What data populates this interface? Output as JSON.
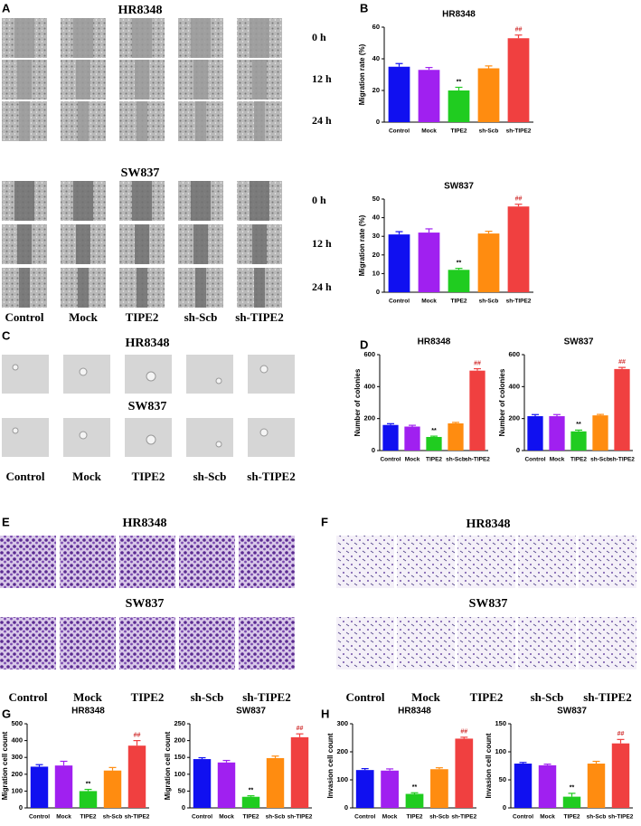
{
  "panel_letters": [
    "A",
    "B",
    "C",
    "D",
    "E",
    "F",
    "G",
    "H"
  ],
  "panels": {
    "A": {
      "groups": [
        {
          "title": "HR8348",
          "rows": [
            "0 h",
            "12 h",
            "24 h"
          ]
        },
        {
          "title": "SW837",
          "rows": [
            "0 h",
            "12 h",
            "24 h"
          ]
        }
      ],
      "columns": [
        "Control",
        "Mock",
        "TIPE2",
        "sh-Scb",
        "sh-TIPE2"
      ]
    },
    "C": {
      "groups": [
        {
          "title": "HR8348"
        },
        {
          "title": "SW837"
        }
      ],
      "columns": [
        "Control",
        "Mock",
        "TIPE2",
        "sh-Scb",
        "sh-TIPE2"
      ]
    },
    "E": {
      "groups": [
        {
          "title": "HR8348"
        },
        {
          "title": "SW837"
        }
      ],
      "columns": [
        "Control",
        "Mock",
        "TIPE2",
        "sh-Scb",
        "sh-TIPE2"
      ]
    },
    "F": {
      "groups": [
        {
          "title": "HR8348"
        },
        {
          "title": "SW837"
        }
      ],
      "columns": [
        "Control",
        "Mock",
        "TIPE2",
        "sh-Scb",
        "sh-TIPE2"
      ]
    }
  },
  "chart_data": [
    {
      "type": "bar",
      "title": "HR8348",
      "y_label": "Migration rate (%)",
      "categories": [
        "Control",
        "Mock",
        "TIPE2",
        "sh-Scb",
        "sh-TIPE2"
      ],
      "values": [
        35,
        33,
        20,
        34,
        53
      ],
      "errors": [
        2,
        1.5,
        2,
        1.5,
        2
      ],
      "annotations": [
        null,
        null,
        "**",
        null,
        "##"
      ],
      "colors": [
        "#1010f0",
        "#a020f0",
        "#20cc20",
        "#ff8c10",
        "#f04040"
      ],
      "ylim": [
        0,
        60
      ],
      "yticks": [
        0,
        20,
        40,
        60
      ]
    },
    {
      "type": "bar",
      "title": "SW837",
      "y_label": "Migration rate (%)",
      "categories": [
        "Control",
        "Mock",
        "TIPE2",
        "sh-Scb",
        "sh-TIPE2"
      ],
      "values": [
        31,
        32,
        12,
        31.5,
        46
      ],
      "errors": [
        1.5,
        2,
        0.8,
        1.2,
        1.2
      ],
      "annotations": [
        null,
        null,
        "**",
        null,
        "##"
      ],
      "colors": [
        "#1010f0",
        "#a020f0",
        "#20cc20",
        "#ff8c10",
        "#f04040"
      ],
      "ylim": [
        0,
        50
      ],
      "yticks": [
        0,
        10,
        20,
        30,
        40,
        50
      ]
    },
    {
      "type": "bar",
      "title": "HR8348",
      "y_label": "Number of colonies",
      "categories": [
        "Control",
        "Mock",
        "TIPE2",
        "sh-Scb",
        "sh-TIPE2"
      ],
      "values": [
        160,
        150,
        85,
        170,
        500
      ],
      "errors": [
        8,
        8,
        5,
        6,
        12
      ],
      "annotations": [
        null,
        null,
        "**",
        null,
        "##"
      ],
      "colors": [
        "#1010f0",
        "#a020f0",
        "#20cc20",
        "#ff8c10",
        "#f04040"
      ],
      "ylim": [
        0,
        600
      ],
      "yticks": [
        0,
        200,
        400,
        600
      ]
    },
    {
      "type": "bar",
      "title": "SW837",
      "y_label": "Number of colonies",
      "categories": [
        "Control",
        "Mock",
        "TIPE2",
        "sh-Scb",
        "sh-TIPE2"
      ],
      "values": [
        215,
        215,
        120,
        220,
        510
      ],
      "errors": [
        10,
        10,
        8,
        6,
        10
      ],
      "annotations": [
        null,
        null,
        "**",
        null,
        "##"
      ],
      "colors": [
        "#1010f0",
        "#a020f0",
        "#20cc20",
        "#ff8c10",
        "#f04040"
      ],
      "ylim": [
        0,
        600
      ],
      "yticks": [
        0,
        200,
        400,
        600
      ]
    },
    {
      "type": "bar",
      "title": "HR8348",
      "y_label": "Migration cell count",
      "categories": [
        "Control",
        "Mock",
        "TIPE2",
        "sh-Scb",
        "sh-TIPE2"
      ],
      "values": [
        245,
        252,
        100,
        222,
        370
      ],
      "errors": [
        12,
        25,
        10,
        18,
        30
      ],
      "annotations": [
        null,
        null,
        "**",
        null,
        "##"
      ],
      "colors": [
        "#1010f0",
        "#a020f0",
        "#20cc20",
        "#ff8c10",
        "#f04040"
      ],
      "ylim": [
        0,
        500
      ],
      "yticks": [
        0,
        100,
        200,
        300,
        400,
        500
      ]
    },
    {
      "type": "bar",
      "title": "SW837",
      "y_label": "Migration cell count",
      "categories": [
        "Control",
        "Mock",
        "TIPE2",
        "sh-Scb",
        "sh-TIPE2"
      ],
      "values": [
        145,
        135,
        33,
        148,
        210
      ],
      "errors": [
        4,
        6,
        3,
        6,
        10
      ],
      "annotations": [
        null,
        null,
        "**",
        null,
        "##"
      ],
      "colors": [
        "#1010f0",
        "#a020f0",
        "#20cc20",
        "#ff8c10",
        "#f04040"
      ],
      "ylim": [
        0,
        250
      ],
      "yticks": [
        0,
        50,
        100,
        150,
        200,
        250
      ]
    },
    {
      "type": "bar",
      "title": "HR8348",
      "y_label": "Invasion cell count",
      "categories": [
        "Control",
        "Mock",
        "TIPE2",
        "sh-Scb",
        "sh-TIPE2"
      ],
      "values": [
        135,
        133,
        50,
        138,
        247
      ],
      "errors": [
        5,
        6,
        4,
        5,
        5
      ],
      "annotations": [
        null,
        null,
        "**",
        null,
        "##"
      ],
      "colors": [
        "#1010f0",
        "#a020f0",
        "#20cc20",
        "#ff8c10",
        "#f04040"
      ],
      "ylim": [
        0,
        300
      ],
      "yticks": [
        0,
        100,
        200,
        300
      ]
    },
    {
      "type": "bar",
      "title": "SW837",
      "y_label": "Invasion cell count",
      "categories": [
        "Control",
        "Mock",
        "TIPE2",
        "sh-Scb",
        "sh-TIPE2"
      ],
      "values": [
        79,
        76,
        20,
        79,
        115
      ],
      "errors": [
        2,
        2,
        6,
        4,
        7
      ],
      "annotations": [
        null,
        null,
        "**",
        null,
        "##"
      ],
      "colors": [
        "#1010f0",
        "#a020f0",
        "#20cc20",
        "#ff8c10",
        "#f04040"
      ],
      "ylim": [
        0,
        150
      ],
      "yticks": [
        0,
        50,
        100,
        150
      ]
    }
  ]
}
